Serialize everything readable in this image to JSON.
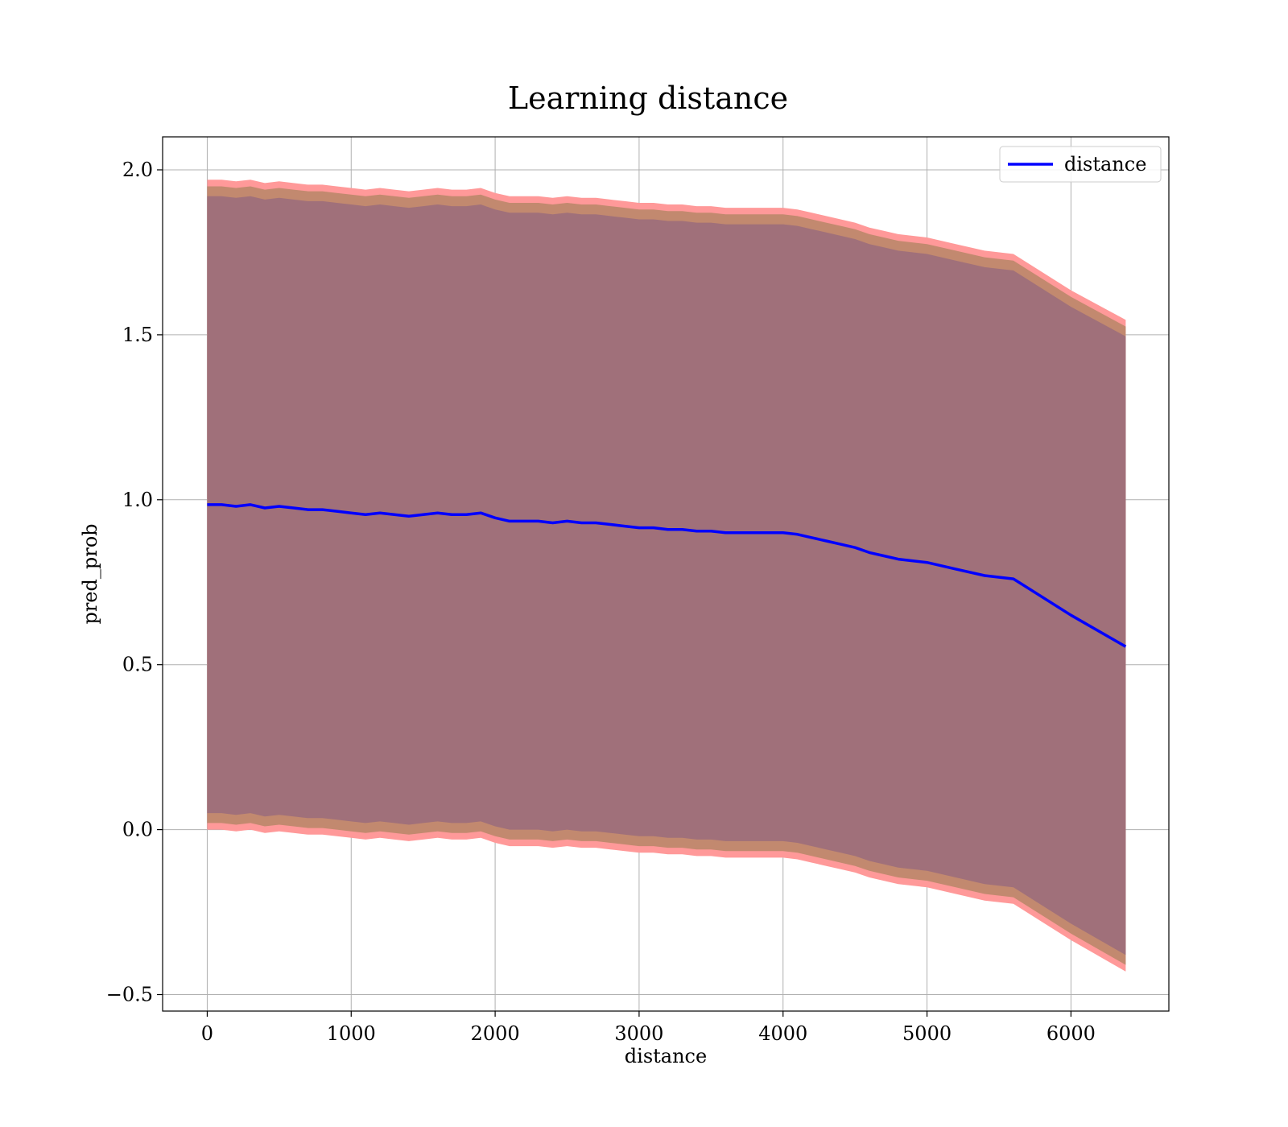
{
  "chart_data": {
    "type": "line",
    "title": "Learning distance",
    "xlabel": "distance",
    "ylabel": "pred_prob",
    "xlim": [
      -310,
      6680
    ],
    "ylim": [
      -0.55,
      2.1
    ],
    "xticks": [
      0,
      1000,
      2000,
      3000,
      4000,
      5000,
      6000
    ],
    "yticks": [
      -0.5,
      0.0,
      0.5,
      1.0,
      1.5,
      2.0
    ],
    "ytick_labels": [
      "−0.5",
      "0.0",
      "0.5",
      "1.0",
      "1.5",
      "2.0"
    ],
    "grid": true,
    "legend": {
      "position": "top-right",
      "entries": [
        "distance"
      ]
    },
    "colors": {
      "line": "#0000ff",
      "band_outer": "#ff9999",
      "band_middle": "#c2896f",
      "band_inner": "#a0707a",
      "grid": "#b0b0b0"
    },
    "series": [
      {
        "name": "distance",
        "x": [
          0,
          100,
          200,
          300,
          400,
          500,
          600,
          700,
          800,
          900,
          1000,
          1100,
          1200,
          1300,
          1400,
          1500,
          1600,
          1700,
          1800,
          1900,
          2000,
          2100,
          2200,
          2300,
          2400,
          2500,
          2600,
          2700,
          2800,
          2900,
          3000,
          3100,
          3200,
          3300,
          3400,
          3500,
          3600,
          3700,
          3800,
          3900,
          4000,
          4100,
          4200,
          4300,
          4400,
          4500,
          4600,
          4700,
          4800,
          5000,
          5200,
          5400,
          5600,
          6000,
          6380
        ],
        "y": [
          0.985,
          0.985,
          0.98,
          0.985,
          0.975,
          0.98,
          0.975,
          0.97,
          0.97,
          0.965,
          0.96,
          0.955,
          0.96,
          0.955,
          0.95,
          0.955,
          0.96,
          0.955,
          0.955,
          0.96,
          0.945,
          0.935,
          0.935,
          0.935,
          0.93,
          0.935,
          0.93,
          0.93,
          0.925,
          0.92,
          0.915,
          0.915,
          0.91,
          0.91,
          0.905,
          0.905,
          0.9,
          0.9,
          0.9,
          0.9,
          0.9,
          0.895,
          0.885,
          0.875,
          0.865,
          0.855,
          0.84,
          0.83,
          0.82,
          0.81,
          0.79,
          0.77,
          0.76,
          0.65,
          0.555
        ]
      }
    ],
    "bands": [
      {
        "name": "outer",
        "lower": [
          0.0,
          0.0,
          -0.005,
          0.0,
          -0.01,
          -0.005,
          -0.01,
          -0.015,
          -0.015,
          -0.02,
          -0.025,
          -0.03,
          -0.025,
          -0.03,
          -0.035,
          -0.03,
          -0.025,
          -0.03,
          -0.03,
          -0.025,
          -0.04,
          -0.05,
          -0.05,
          -0.05,
          -0.055,
          -0.05,
          -0.055,
          -0.055,
          -0.06,
          -0.065,
          -0.07,
          -0.07,
          -0.075,
          -0.075,
          -0.08,
          -0.08,
          -0.085,
          -0.085,
          -0.085,
          -0.085,
          -0.085,
          -0.09,
          -0.1,
          -0.11,
          -0.12,
          -0.13,
          -0.145,
          -0.155,
          -0.165,
          -0.175,
          -0.195,
          -0.215,
          -0.225,
          -0.335,
          -0.43
        ],
        "upper": [
          1.97,
          1.97,
          1.965,
          1.97,
          1.96,
          1.965,
          1.96,
          1.955,
          1.955,
          1.95,
          1.945,
          1.94,
          1.945,
          1.94,
          1.935,
          1.94,
          1.945,
          1.94,
          1.94,
          1.945,
          1.93,
          1.92,
          1.92,
          1.92,
          1.915,
          1.92,
          1.915,
          1.915,
          1.91,
          1.905,
          1.9,
          1.9,
          1.895,
          1.895,
          1.89,
          1.89,
          1.885,
          1.885,
          1.885,
          1.885,
          1.885,
          1.88,
          1.87,
          1.86,
          1.85,
          1.84,
          1.825,
          1.815,
          1.805,
          1.795,
          1.775,
          1.755,
          1.745,
          1.635,
          1.545
        ]
      },
      {
        "name": "middle",
        "lower": [
          0.02,
          0.02,
          0.015,
          0.02,
          0.01,
          0.015,
          0.01,
          0.005,
          0.005,
          0.0,
          -0.005,
          -0.01,
          -0.005,
          -0.01,
          -0.015,
          -0.01,
          -0.005,
          -0.01,
          -0.01,
          -0.005,
          -0.02,
          -0.03,
          -0.03,
          -0.03,
          -0.035,
          -0.03,
          -0.035,
          -0.035,
          -0.04,
          -0.045,
          -0.05,
          -0.05,
          -0.055,
          -0.055,
          -0.06,
          -0.06,
          -0.065,
          -0.065,
          -0.065,
          -0.065,
          -0.065,
          -0.07,
          -0.08,
          -0.09,
          -0.1,
          -0.11,
          -0.125,
          -0.135,
          -0.145,
          -0.155,
          -0.175,
          -0.195,
          -0.205,
          -0.315,
          -0.41
        ],
        "upper": [
          1.95,
          1.95,
          1.945,
          1.95,
          1.94,
          1.945,
          1.94,
          1.935,
          1.935,
          1.93,
          1.925,
          1.92,
          1.925,
          1.92,
          1.915,
          1.92,
          1.925,
          1.92,
          1.92,
          1.925,
          1.91,
          1.9,
          1.9,
          1.9,
          1.895,
          1.9,
          1.895,
          1.895,
          1.89,
          1.885,
          1.88,
          1.88,
          1.875,
          1.875,
          1.87,
          1.87,
          1.865,
          1.865,
          1.865,
          1.865,
          1.865,
          1.86,
          1.85,
          1.84,
          1.83,
          1.82,
          1.805,
          1.795,
          1.785,
          1.775,
          1.755,
          1.735,
          1.725,
          1.615,
          1.525
        ]
      },
      {
        "name": "inner",
        "lower": [
          0.05,
          0.05,
          0.045,
          0.05,
          0.04,
          0.045,
          0.04,
          0.035,
          0.035,
          0.03,
          0.025,
          0.02,
          0.025,
          0.02,
          0.015,
          0.02,
          0.025,
          0.02,
          0.02,
          0.025,
          0.01,
          0.0,
          0.0,
          0.0,
          -0.005,
          0.0,
          -0.005,
          -0.005,
          -0.01,
          -0.015,
          -0.02,
          -0.02,
          -0.025,
          -0.025,
          -0.03,
          -0.03,
          -0.035,
          -0.035,
          -0.035,
          -0.035,
          -0.035,
          -0.04,
          -0.05,
          -0.06,
          -0.07,
          -0.08,
          -0.095,
          -0.105,
          -0.115,
          -0.125,
          -0.145,
          -0.165,
          -0.175,
          -0.285,
          -0.38
        ],
        "upper": [
          1.92,
          1.92,
          1.915,
          1.92,
          1.91,
          1.915,
          1.91,
          1.905,
          1.905,
          1.9,
          1.895,
          1.89,
          1.895,
          1.89,
          1.885,
          1.89,
          1.895,
          1.89,
          1.89,
          1.895,
          1.88,
          1.87,
          1.87,
          1.87,
          1.865,
          1.87,
          1.865,
          1.865,
          1.86,
          1.855,
          1.85,
          1.85,
          1.845,
          1.845,
          1.84,
          1.84,
          1.835,
          1.835,
          1.835,
          1.835,
          1.835,
          1.83,
          1.82,
          1.81,
          1.8,
          1.79,
          1.775,
          1.765,
          1.755,
          1.745,
          1.725,
          1.705,
          1.695,
          1.585,
          1.495
        ]
      }
    ]
  }
}
